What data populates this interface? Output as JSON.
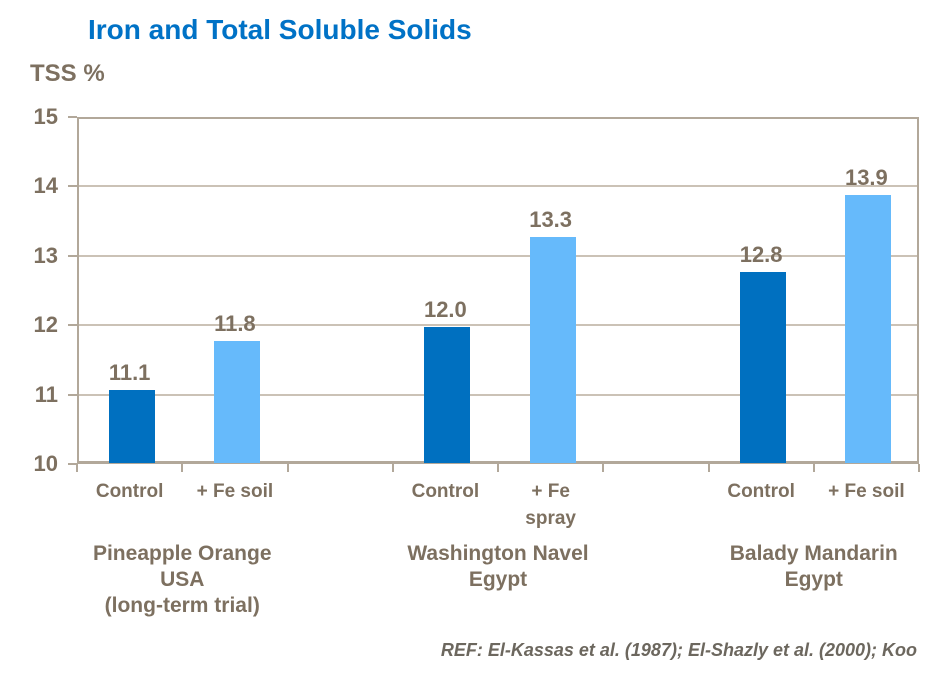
{
  "chart_data": {
    "type": "bar",
    "title": "Iron and Total Soluble Solids",
    "ylabel": "TSS %",
    "ylim": [
      10,
      15
    ],
    "yticks": [
      10,
      11,
      12,
      13,
      14,
      15
    ],
    "grid": true,
    "legend_position": "none",
    "groups": [
      {
        "label": "Pineapple Orange\nUSA\n(long-term trial)",
        "bars": [
          {
            "category": "Control",
            "value": 11.1,
            "value_label": "11.1",
            "role": "control"
          },
          {
            "category": "+ Fe soil",
            "value": 11.8,
            "value_label": "11.8",
            "role": "treated"
          }
        ]
      },
      {
        "label": "Washington Navel\nEgypt",
        "bars": [
          {
            "category": "Control",
            "value": 12.0,
            "value_label": "12.0",
            "role": "control"
          },
          {
            "category": "+ Fe\nspray",
            "value": 13.3,
            "value_label": "13.3",
            "role": "treated"
          }
        ]
      },
      {
        "label": "Balady Mandarin\nEgypt",
        "bars": [
          {
            "category": "Control",
            "value": 12.8,
            "value_label": "12.8",
            "role": "control"
          },
          {
            "category": "+ Fe soil",
            "value": 13.9,
            "value_label": "13.9",
            "role": "treated"
          }
        ]
      }
    ],
    "footer": "REF: El-Kassas et al. (1987); El-Shazly et al. (2000); Koo",
    "colors": {
      "title": "#0072C6",
      "bar_control": "#0070C0",
      "bar_treated": "#66BAFB",
      "text": "#7D7060",
      "footer_text": "#6C675E",
      "grid": "#CBC2B6",
      "border": "#B2A89A"
    }
  }
}
